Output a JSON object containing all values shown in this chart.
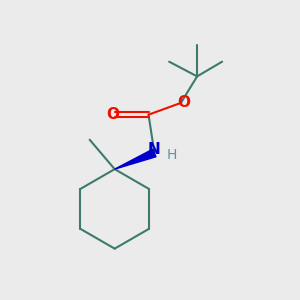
{
  "background_color": "#ebebeb",
  "bond_color": "#3d7a6e",
  "bond_width": 1.5,
  "wedge_color": "#0000cc",
  "O_color": "#ee1100",
  "N_color": "#0000cc",
  "H_color": "#5599aa",
  "figsize": [
    3.0,
    3.0
  ],
  "dpi": 100,
  "xlim": [
    0,
    10
  ],
  "ylim": [
    0,
    10
  ]
}
